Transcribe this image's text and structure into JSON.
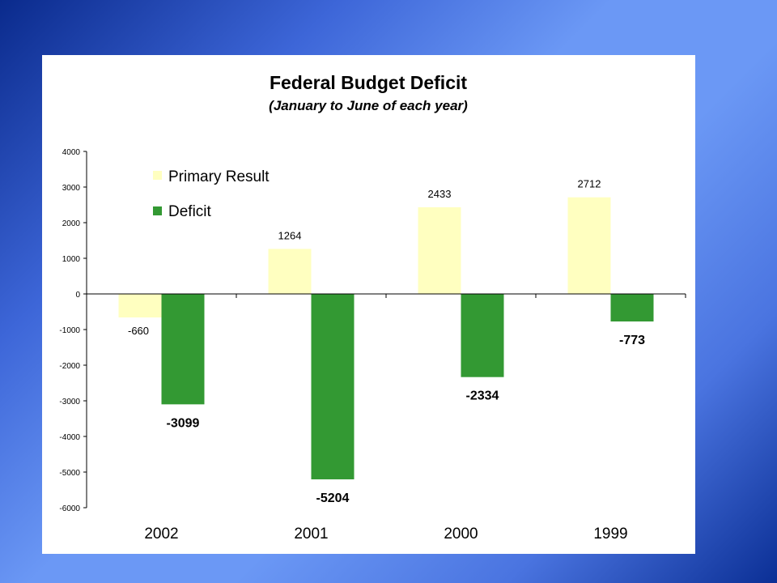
{
  "chart_data": {
    "type": "bar",
    "title": "Federal Budget Deficit",
    "subtitle": "(January to June of each year)",
    "categories": [
      "2002",
      "2001",
      "2000",
      "1999"
    ],
    "series": [
      {
        "name": "Primary Result",
        "color": "#ffffc0",
        "values": [
          -660,
          1264,
          2433,
          2712
        ]
      },
      {
        "name": "Deficit",
        "color": "#339933",
        "values": [
          -3099,
          -5204,
          -2334,
          -773
        ]
      }
    ],
    "ylim": [
      -6000,
      4000
    ],
    "yticks": [
      4000,
      3000,
      2000,
      1000,
      0,
      -1000,
      -2000,
      -3000,
      -4000,
      -5000,
      -6000
    ],
    "xlabel": "",
    "ylabel": "",
    "grid": false,
    "legend_position": "top-left"
  }
}
